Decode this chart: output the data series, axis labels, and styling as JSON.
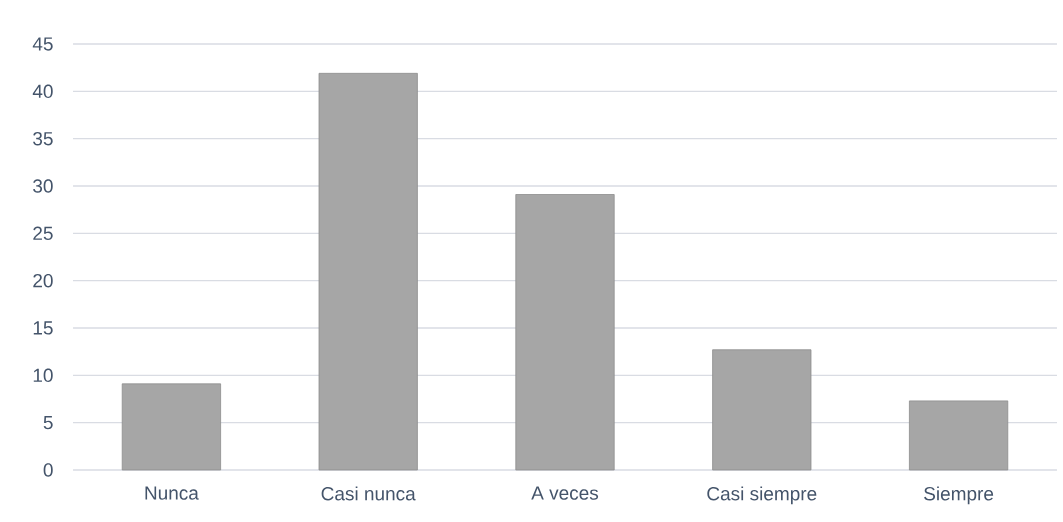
{
  "chart_data": {
    "type": "bar",
    "categories": [
      "Nunca",
      "Casi nunca",
      "A veces",
      "Casi siempre",
      "Siempre"
    ],
    "values": [
      9.1,
      41.9,
      29.1,
      12.7,
      7.3
    ],
    "color": "#a6a6a6",
    "ylim": [
      0,
      45
    ],
    "yticks": [
      0,
      5,
      10,
      15,
      20,
      25,
      30,
      35,
      40,
      45
    ],
    "grid": "y"
  }
}
